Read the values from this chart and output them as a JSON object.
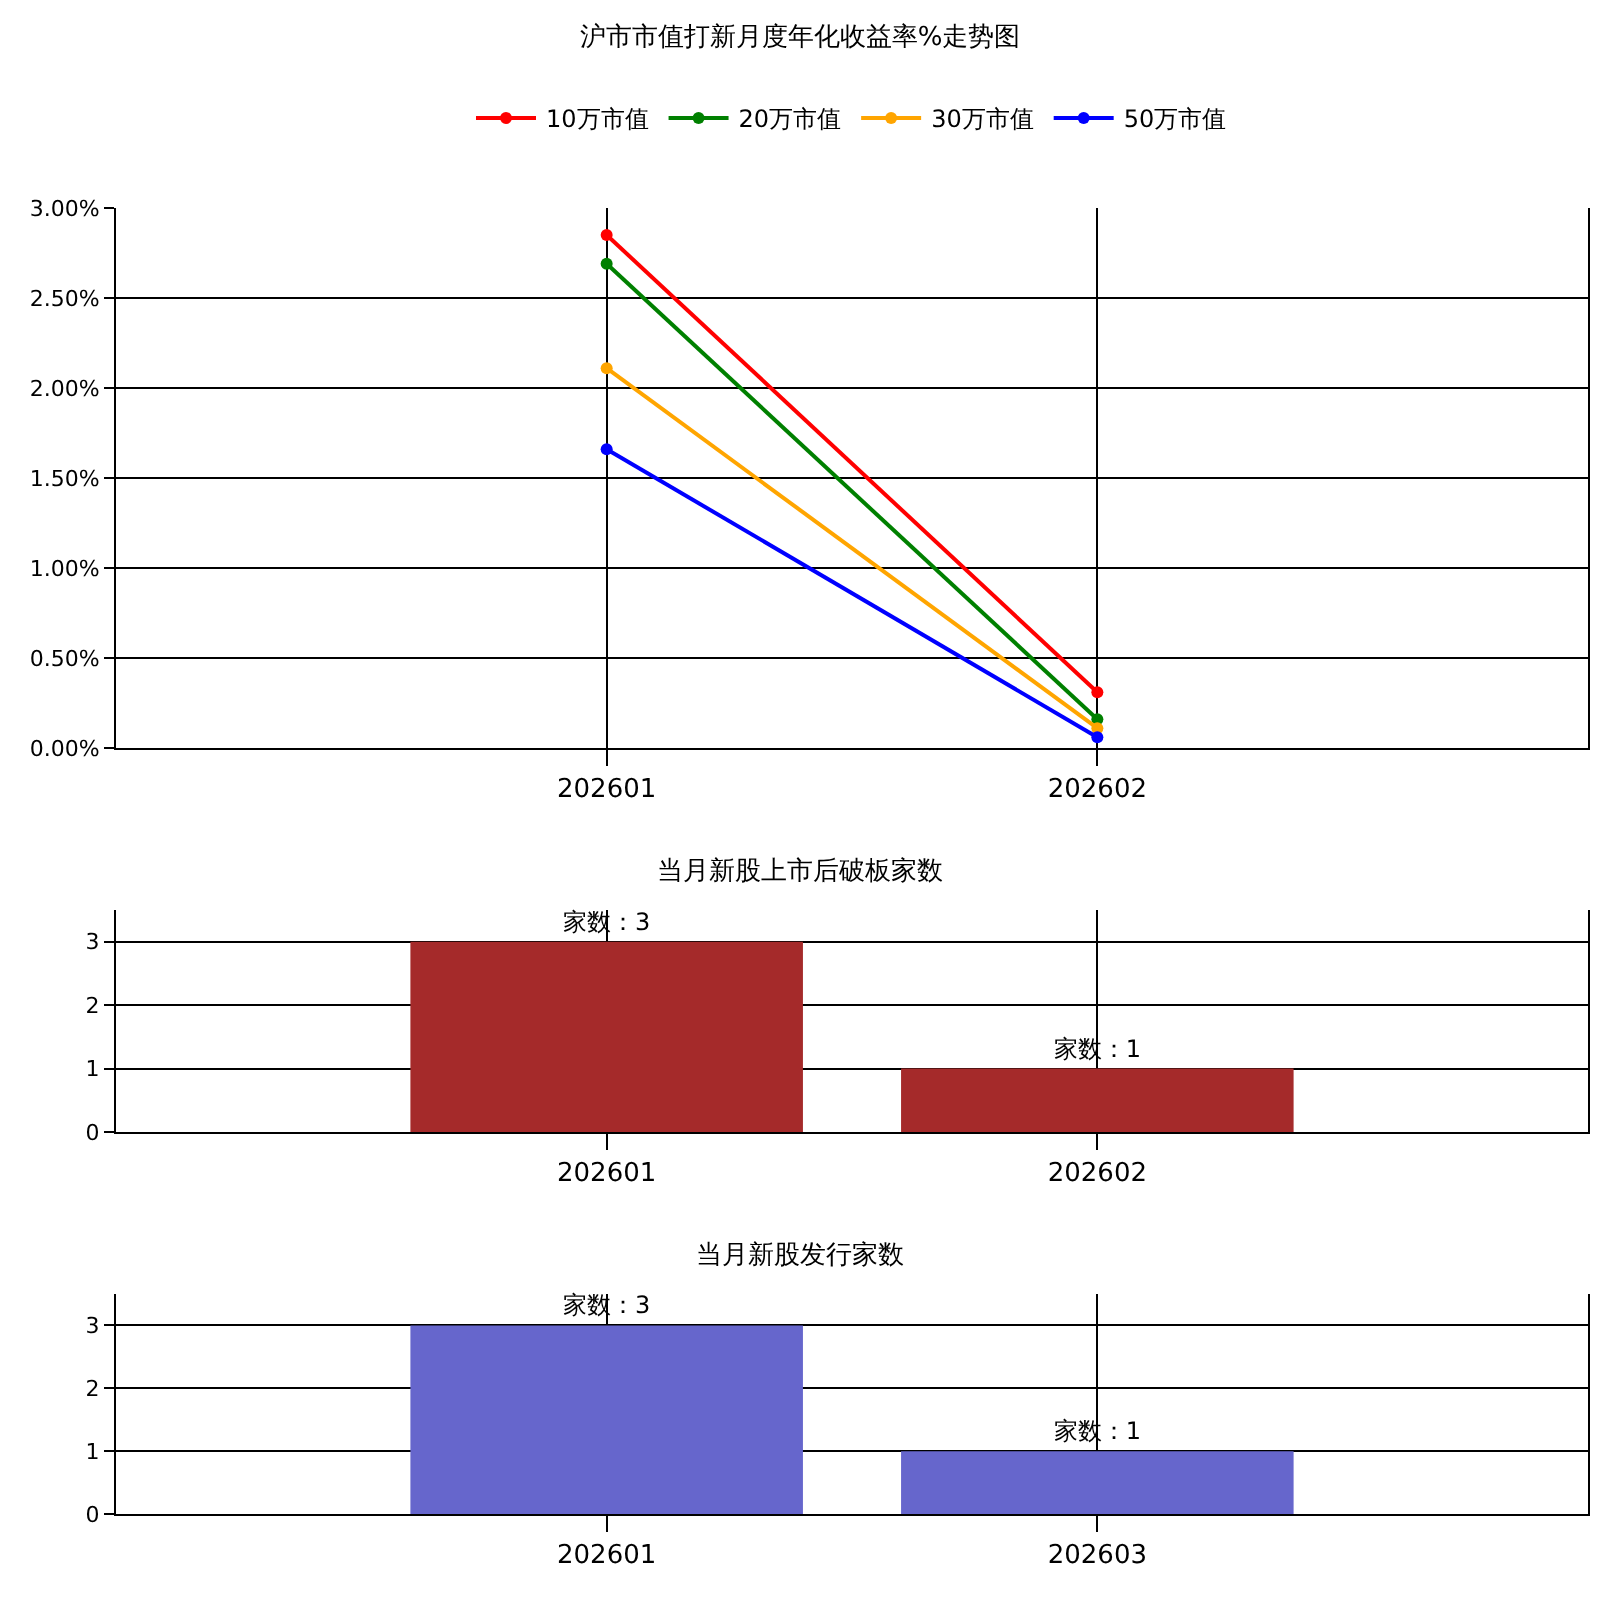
{
  "chart_data": [
    {
      "type": "line",
      "title": "沪市市值打新月度年化收益率%走势图",
      "categories": [
        "202601",
        "202602"
      ],
      "series": [
        {
          "name": "10万市值",
          "color": "#ff0000",
          "values": [
            2.85,
            0.31
          ]
        },
        {
          "name": "20万市值",
          "color": "#008000",
          "values": [
            2.69,
            0.16
          ]
        },
        {
          "name": "30万市值",
          "color": "#ffa500",
          "values": [
            2.11,
            0.11
          ]
        },
        {
          "name": "50万市值",
          "color": "#0000ff",
          "values": [
            1.66,
            0.06
          ]
        }
      ],
      "ylim": [
        0,
        3
      ],
      "yticks": [
        {
          "value": 0,
          "label": "0.00%"
        },
        {
          "value": 0.5,
          "label": "0.50%"
        },
        {
          "value": 1,
          "label": "1.00%"
        },
        {
          "value": 1.5,
          "label": "1.50%"
        },
        {
          "value": 2,
          "label": "2.00%"
        },
        {
          "value": 2.5,
          "label": "2.50%"
        },
        {
          "value": 3,
          "label": "3.00%"
        }
      ],
      "grid": true,
      "legend": "top",
      "marker": "circle",
      "line_style": "solid"
    },
    {
      "type": "bar",
      "title": "当月新股上市后破板家数",
      "categories": [
        "202601",
        "202602"
      ],
      "values": [
        3,
        1
      ],
      "color": "#a52a2a",
      "value_labels": [
        "家数：3",
        "家数：1"
      ],
      "ylim": [
        0,
        3.5
      ],
      "yticks": [
        0,
        1,
        2,
        3
      ],
      "grid": true
    },
    {
      "type": "bar",
      "title": "当月新股发行家数",
      "categories": [
        "202601",
        "202603"
      ],
      "values": [
        3,
        1
      ],
      "color": "#6666cc",
      "value_labels": [
        "家数：3",
        "家数：1"
      ],
      "ylim": [
        0,
        3.5
      ],
      "yticks": [
        0,
        1,
        2,
        3
      ],
      "grid": true
    }
  ]
}
